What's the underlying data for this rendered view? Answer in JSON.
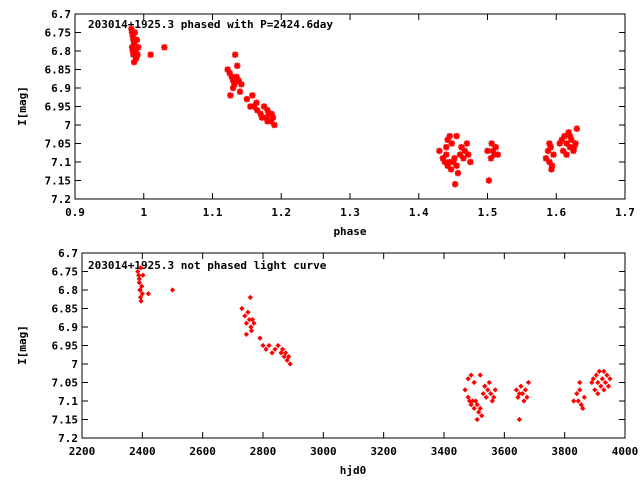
{
  "colors": {
    "points": "#ff0000",
    "frame": "#000000"
  },
  "chart_data": [
    {
      "type": "scatter",
      "title": "203014+1925.3 phased with P=2424.6day",
      "xlabel": "phase",
      "ylabel": "I[mag]",
      "xlim": [
        0.9,
        1.7
      ],
      "ylim": [
        6.7,
        7.2
      ],
      "y_inverted": true,
      "grid": false,
      "marker": "star",
      "xticks": [
        "0.9",
        "1",
        "1.1",
        "1.2",
        "1.3",
        "1.4",
        "1.5",
        "1.6",
        "1.7"
      ],
      "yticks": [
        "6.7",
        "6.75",
        "6.8",
        "6.85",
        "6.9",
        "6.95",
        "7",
        "7.05",
        "7.1",
        "7.15",
        "7.2"
      ],
      "series": [
        {
          "points": [
            [
              0.982,
              6.74
            ],
            [
              0.983,
              6.75
            ],
            [
              0.984,
              6.76
            ],
            [
              0.985,
              6.77
            ],
            [
              0.986,
              6.78
            ],
            [
              0.983,
              6.79
            ],
            [
              0.988,
              6.8
            ],
            [
              0.985,
              6.81
            ],
            [
              0.989,
              6.82
            ],
            [
              0.986,
              6.83
            ],
            [
              0.99,
              6.77
            ],
            [
              0.992,
              6.79
            ],
            [
              0.987,
              6.75
            ],
            [
              0.984,
              6.8
            ],
            [
              0.991,
              6.81
            ],
            [
              1.01,
              6.81
            ],
            [
              1.03,
              6.79
            ],
            [
              1.122,
              6.85
            ],
            [
              1.125,
              6.86
            ],
            [
              1.128,
              6.87
            ],
            [
              1.13,
              6.88
            ],
            [
              1.132,
              6.89
            ],
            [
              1.135,
              6.87
            ],
            [
              1.138,
              6.88
            ],
            [
              1.13,
              6.9
            ],
            [
              1.126,
              6.92
            ],
            [
              1.14,
              6.91
            ],
            [
              1.136,
              6.84
            ],
            [
              1.142,
              6.89
            ],
            [
              1.133,
              6.81
            ],
            [
              1.15,
              6.93
            ],
            [
              1.155,
              6.95
            ],
            [
              1.16,
              6.95
            ],
            [
              1.165,
              6.96
            ],
            [
              1.158,
              6.92
            ],
            [
              1.17,
              6.97
            ],
            [
              1.175,
              6.95
            ],
            [
              1.18,
              6.96
            ],
            [
              1.178,
              6.98
            ],
            [
              1.182,
              6.97
            ],
            [
              1.185,
              6.99
            ],
            [
              1.188,
              6.98
            ],
            [
              1.19,
              7.0
            ],
            [
              1.186,
              6.97
            ],
            [
              1.18,
              6.99
            ],
            [
              1.172,
              6.98
            ],
            [
              1.164,
              6.94
            ],
            [
              1.43,
              7.07
            ],
            [
              1.435,
              7.09
            ],
            [
              1.438,
              7.1
            ],
            [
              1.44,
              7.08
            ],
            [
              1.442,
              7.11
            ],
            [
              1.445,
              7.1
            ],
            [
              1.447,
              7.12
            ],
            [
              1.45,
              7.1
            ],
            [
              1.452,
              7.09
            ],
            [
              1.455,
              7.11
            ],
            [
              1.457,
              7.13
            ],
            [
              1.453,
              7.16
            ],
            [
              1.445,
              7.03
            ],
            [
              1.44,
              7.06
            ],
            [
              1.46,
              7.08
            ],
            [
              1.462,
              7.06
            ],
            [
              1.465,
              7.09
            ],
            [
              1.467,
              7.07
            ],
            [
              1.47,
              7.05
            ],
            [
              1.472,
              7.08
            ],
            [
              1.455,
              7.03
            ],
            [
              1.475,
              7.1
            ],
            [
              1.448,
              7.05
            ],
            [
              1.442,
              7.04
            ],
            [
              1.5,
              7.07
            ],
            [
              1.505,
              7.09
            ],
            [
              1.508,
              7.07
            ],
            [
              1.51,
              7.08
            ],
            [
              1.512,
              7.06
            ],
            [
              1.515,
              7.08
            ],
            [
              1.502,
              7.15
            ],
            [
              1.506,
              7.05
            ],
            [
              1.585,
              7.09
            ],
            [
              1.588,
              7.07
            ],
            [
              1.59,
              7.1
            ],
            [
              1.592,
              7.06
            ],
            [
              1.594,
              7.11
            ],
            [
              1.596,
              7.08
            ],
            [
              1.59,
              7.05
            ],
            [
              1.593,
              7.12
            ],
            [
              1.605,
              7.05
            ],
            [
              1.608,
              7.04
            ],
            [
              1.61,
              7.07
            ],
            [
              1.612,
              7.03
            ],
            [
              1.615,
              7.05
            ],
            [
              1.618,
              7.02
            ],
            [
              1.62,
              7.06
            ],
            [
              1.622,
              7.04
            ],
            [
              1.625,
              7.07
            ],
            [
              1.628,
              7.05
            ],
            [
              1.63,
              7.01
            ],
            [
              1.615,
              7.08
            ],
            [
              1.62,
              7.03
            ],
            [
              1.626,
              7.06
            ]
          ]
        }
      ]
    },
    {
      "type": "scatter",
      "title": "203014+1925.3 not phased light curve",
      "xlabel": "hjd0",
      "ylabel": "I[mag]",
      "xlim": [
        2200,
        4000
      ],
      "ylim": [
        6.7,
        7.2
      ],
      "y_inverted": true,
      "grid": false,
      "marker": "diamond",
      "xticks": [
        "2200",
        "2400",
        "2600",
        "2800",
        "3000",
        "3200",
        "3400",
        "3600",
        "3800",
        "4000"
      ],
      "yticks": [
        "6.7",
        "6.75",
        "6.8",
        "6.85",
        "6.9",
        "6.95",
        "7",
        "7.05",
        "7.1",
        "7.15",
        "7.2"
      ],
      "series": [
        {
          "points": [
            [
              2385,
              6.75
            ],
            [
              2388,
              6.76
            ],
            [
              2390,
              6.78
            ],
            [
              2392,
              6.8
            ],
            [
              2394,
              6.82
            ],
            [
              2396,
              6.83
            ],
            [
              2390,
              6.77
            ],
            [
              2398,
              6.79
            ],
            [
              2400,
              6.81
            ],
            [
              2395,
              6.74
            ],
            [
              2402,
              6.76
            ],
            [
              2393,
              6.8
            ],
            [
              2420,
              6.81
            ],
            [
              2500,
              6.8
            ],
            [
              2730,
              6.85
            ],
            [
              2740,
              6.87
            ],
            [
              2745,
              6.89
            ],
            [
              2750,
              6.86
            ],
            [
              2755,
              6.88
            ],
            [
              2760,
              6.9
            ],
            [
              2765,
              6.88
            ],
            [
              2770,
              6.89
            ],
            [
              2758,
              6.82
            ],
            [
              2745,
              6.92
            ],
            [
              2762,
              6.91
            ],
            [
              2790,
              6.93
            ],
            [
              2800,
              6.95
            ],
            [
              2810,
              6.96
            ],
            [
              2820,
              6.95
            ],
            [
              2830,
              6.97
            ],
            [
              2840,
              6.96
            ],
            [
              2850,
              6.95
            ],
            [
              2860,
              6.97
            ],
            [
              2870,
              6.98
            ],
            [
              2880,
              6.99
            ],
            [
              2890,
              7.0
            ],
            [
              2885,
              6.98
            ],
            [
              2875,
              6.97
            ],
            [
              2865,
              6.96
            ],
            [
              3470,
              7.07
            ],
            [
              3480,
              7.09
            ],
            [
              3485,
              7.1
            ],
            [
              3490,
              7.11
            ],
            [
              3495,
              7.1
            ],
            [
              3500,
              7.12
            ],
            [
              3505,
              7.1
            ],
            [
              3510,
              7.11
            ],
            [
              3515,
              7.13
            ],
            [
              3520,
              7.12
            ],
            [
              3525,
              7.14
            ],
            [
              3490,
              7.03
            ],
            [
              3500,
              7.05
            ],
            [
              3530,
              7.08
            ],
            [
              3535,
              7.06
            ],
            [
              3540,
              7.09
            ],
            [
              3545,
              7.07
            ],
            [
              3550,
              7.05
            ],
            [
              3555,
              7.08
            ],
            [
              3560,
              7.1
            ],
            [
              3565,
              7.09
            ],
            [
              3570,
              7.07
            ],
            [
              3480,
              7.04
            ],
            [
              3520,
              7.03
            ],
            [
              3510,
              7.15
            ],
            [
              3640,
              7.07
            ],
            [
              3645,
              7.09
            ],
            [
              3650,
              7.08
            ],
            [
              3655,
              7.06
            ],
            [
              3660,
              7.08
            ],
            [
              3665,
              7.1
            ],
            [
              3670,
              7.07
            ],
            [
              3675,
              7.09
            ],
            [
              3680,
              7.05
            ],
            [
              3650,
              7.15
            ],
            [
              3830,
              7.1
            ],
            [
              3840,
              7.08
            ],
            [
              3845,
              7.1
            ],
            [
              3850,
              7.07
            ],
            [
              3855,
              7.11
            ],
            [
              3860,
              7.12
            ],
            [
              3850,
              7.05
            ],
            [
              3865,
              7.09
            ],
            [
              3890,
              7.05
            ],
            [
              3895,
              7.04
            ],
            [
              3900,
              7.07
            ],
            [
              3905,
              7.03
            ],
            [
              3910,
              7.05
            ],
            [
              3915,
              7.02
            ],
            [
              3920,
              7.06
            ],
            [
              3925,
              7.04
            ],
            [
              3930,
              7.07
            ],
            [
              3935,
              7.05
            ],
            [
              3940,
              7.03
            ],
            [
              3945,
              7.06
            ],
            [
              3950,
              7.04
            ],
            [
              3910,
              7.08
            ],
            [
              3930,
              7.02
            ]
          ]
        }
      ]
    }
  ]
}
